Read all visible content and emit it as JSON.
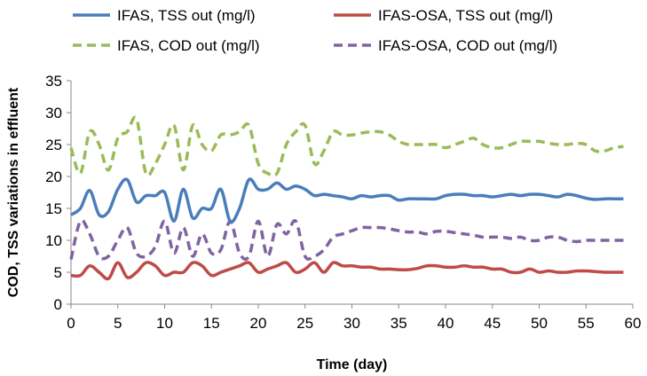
{
  "chart_data": {
    "type": "line",
    "title": "",
    "xlabel": "Time (day)",
    "ylabel": "COD, TSS variations in effluent",
    "xlim": [
      0,
      60
    ],
    "ylim": [
      0,
      35
    ],
    "xticks": [
      0,
      5,
      10,
      15,
      20,
      25,
      30,
      35,
      40,
      45,
      50,
      55,
      60
    ],
    "yticks": [
      0,
      5,
      10,
      15,
      20,
      25,
      30,
      35
    ],
    "grid": false,
    "legend_position": "top",
    "series": [
      {
        "name": "IFAS, TSS out (mg/l)",
        "color": "#4a7ebb",
        "dash": "solid",
        "x": [
          0,
          1,
          2,
          3,
          4,
          5,
          6,
          7,
          8,
          9,
          10,
          11,
          12,
          13,
          14,
          15,
          16,
          17,
          18,
          19,
          20,
          21,
          22,
          23,
          24,
          25,
          26,
          27,
          28,
          29,
          30,
          31,
          32,
          33,
          34,
          35,
          36,
          37,
          38,
          39,
          40,
          41,
          42,
          43,
          44,
          45,
          46,
          47,
          48,
          49,
          50,
          51,
          52,
          53,
          54,
          55,
          56,
          57,
          58,
          59
        ],
        "y": [
          14,
          15,
          17.8,
          14,
          14.5,
          18,
          19.5,
          16,
          17,
          17,
          17.5,
          13,
          18,
          13.5,
          15,
          15,
          18,
          13,
          15,
          19.5,
          18,
          18,
          19,
          18,
          18.5,
          18,
          17,
          17.2,
          17,
          16.8,
          16.5,
          17,
          16.8,
          17,
          17,
          16.3,
          16.5,
          16.5,
          16.5,
          16.5,
          17,
          17.2,
          17.2,
          17,
          17,
          16.8,
          17,
          17.2,
          17,
          17.2,
          17.2,
          17,
          16.8,
          17.2,
          17,
          16.6,
          16.4,
          16.5,
          16.5,
          16.5
        ]
      },
      {
        "name": "IFAS-OSA, TSS out (mg/l)",
        "color": "#be4b48",
        "dash": "solid",
        "x": [
          0,
          1,
          2,
          3,
          4,
          5,
          6,
          7,
          8,
          9,
          10,
          11,
          12,
          13,
          14,
          15,
          16,
          17,
          18,
          19,
          20,
          21,
          22,
          23,
          24,
          25,
          26,
          27,
          28,
          29,
          30,
          31,
          32,
          33,
          34,
          35,
          36,
          37,
          38,
          39,
          40,
          41,
          42,
          43,
          44,
          45,
          46,
          47,
          48,
          49,
          50,
          51,
          52,
          53,
          54,
          55,
          56,
          57,
          58,
          59
        ],
        "y": [
          4.5,
          4.5,
          6,
          5,
          4,
          6.5,
          4.2,
          5,
          6.5,
          6,
          4.5,
          5,
          5,
          6.5,
          6,
          4.5,
          5,
          5.5,
          6,
          6.5,
          5,
          5.5,
          6,
          6.5,
          5,
          5.5,
          6.5,
          5,
          6.5,
          6,
          6,
          5.8,
          5.8,
          5.5,
          5.5,
          5.4,
          5.4,
          5.6,
          6,
          6,
          5.8,
          5.8,
          6,
          5.8,
          5.8,
          5.5,
          5.5,
          5,
          5,
          5.5,
          5,
          5.2,
          5,
          5,
          5.2,
          5.2,
          5.1,
          5,
          5,
          5
        ]
      },
      {
        "name": "IFAS, COD out (mg/l)",
        "color": "#9bbb59",
        "dash": "dashed",
        "x": [
          0,
          1,
          2,
          3,
          4,
          5,
          6,
          7,
          8,
          9,
          10,
          11,
          12,
          13,
          14,
          15,
          16,
          17,
          18,
          19,
          20,
          21,
          22,
          23,
          24,
          25,
          26,
          27,
          28,
          29,
          30,
          31,
          32,
          33,
          34,
          35,
          36,
          37,
          38,
          39,
          40,
          41,
          42,
          43,
          44,
          45,
          46,
          47,
          48,
          49,
          50,
          51,
          52,
          53,
          54,
          55,
          56,
          57,
          58,
          59
        ],
        "y": [
          24.5,
          20.5,
          27,
          25,
          21,
          26,
          27,
          29,
          20.5,
          22,
          25,
          28,
          21,
          28,
          25,
          24,
          26.5,
          26.5,
          27,
          28,
          22,
          20.5,
          20.5,
          25,
          27,
          28,
          22,
          24,
          27,
          26.5,
          26.5,
          26.8,
          27,
          27,
          26.5,
          25.5,
          25,
          25,
          25,
          25,
          24.5,
          25,
          25.5,
          26,
          25,
          24.5,
          24.5,
          25,
          25.5,
          25.5,
          25.5,
          25.2,
          25,
          25,
          25.2,
          25,
          24,
          24,
          24.5,
          24.7
        ]
      },
      {
        "name": "IFAS-OSA, COD out (mg/l)",
        "color": "#8064a2",
        "dash": "dashed",
        "x": [
          0,
          1,
          2,
          3,
          4,
          5,
          6,
          7,
          8,
          9,
          10,
          11,
          12,
          13,
          14,
          15,
          16,
          17,
          18,
          19,
          20,
          21,
          22,
          23,
          24,
          25,
          26,
          27,
          28,
          29,
          30,
          31,
          32,
          33,
          34,
          35,
          36,
          37,
          38,
          39,
          40,
          41,
          42,
          43,
          44,
          45,
          46,
          47,
          48,
          49,
          50,
          51,
          52,
          53,
          54,
          55,
          56,
          57,
          58,
          59
        ],
        "y": [
          7,
          13,
          11,
          7.5,
          7.5,
          10,
          12,
          8,
          7.5,
          9,
          13,
          8,
          12,
          7.5,
          11,
          8,
          8.5,
          13,
          8,
          7.5,
          13,
          7.5,
          12.5,
          11,
          13,
          7.5,
          7.5,
          8.5,
          10.5,
          11,
          11.5,
          12,
          12,
          12,
          11.8,
          11.5,
          11.3,
          11.3,
          11,
          11.4,
          11.4,
          11.2,
          11,
          10.8,
          10.5,
          10.5,
          10.5,
          10.3,
          10.5,
          10,
          10,
          10.5,
          10.5,
          10,
          9.8,
          10,
          10,
          10,
          10,
          10
        ]
      }
    ]
  }
}
